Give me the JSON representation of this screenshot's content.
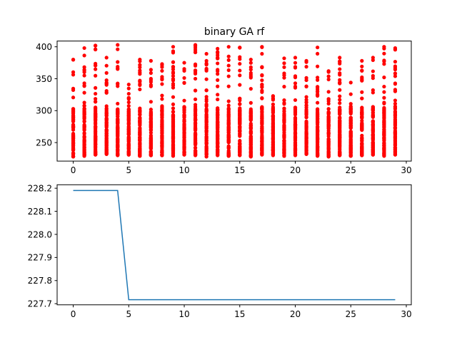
{
  "chart_data": [
    {
      "type": "scatter",
      "title": "binary GA rf",
      "xlabel": "",
      "ylabel": "",
      "xlim": [
        -1.45,
        30.45
      ],
      "ylim": [
        221,
        409
      ],
      "grid": false,
      "xticks": [
        0,
        5,
        10,
        15,
        20,
        25,
        30
      ],
      "yticks": [
        250,
        300,
        350,
        400
      ],
      "marker_color": "#ff0000",
      "points_per_generation": 100,
      "generations": [
        0,
        1,
        2,
        3,
        4,
        5,
        6,
        7,
        8,
        9,
        10,
        11,
        12,
        13,
        14,
        15,
        16,
        17,
        18,
        19,
        20,
        21,
        22,
        23,
        24,
        25,
        26,
        27,
        28,
        29
      ],
      "range_low": [
        228,
        229,
        231,
        232,
        230,
        231,
        229,
        230,
        230,
        229,
        231,
        230,
        228,
        230,
        229,
        230,
        228,
        231,
        230,
        229,
        230,
        232,
        229,
        228,
        230,
        229,
        230,
        231,
        229,
        231
      ],
      "range_high": [
        380,
        398,
        402,
        383,
        403,
        341,
        380,
        378,
        373,
        400,
        375,
        403,
        389,
        397,
        400,
        399,
        380,
        400,
        323,
        382,
        383,
        378,
        399,
        362,
        383,
        344,
        378,
        383,
        400,
        398
      ]
    },
    {
      "type": "line",
      "title": "",
      "xlabel": "",
      "ylabel": "",
      "xlim": [
        -1.45,
        30.45
      ],
      "ylim": [
        227.695,
        228.215
      ],
      "grid": false,
      "xticks": [
        0,
        5,
        10,
        15,
        20,
        25,
        30
      ],
      "yticks": [
        227.7,
        227.8,
        227.9,
        228.0,
        228.1,
        228.2
      ],
      "line_color": "#1f77b4",
      "x": [
        0,
        1,
        2,
        3,
        4,
        5,
        6,
        7,
        8,
        9,
        10,
        11,
        12,
        13,
        14,
        15,
        16,
        17,
        18,
        19,
        20,
        21,
        22,
        23,
        24,
        25,
        26,
        27,
        28,
        29
      ],
      "y": [
        228.19,
        228.19,
        228.19,
        228.19,
        228.19,
        227.717,
        227.717,
        227.717,
        227.717,
        227.717,
        227.717,
        227.717,
        227.717,
        227.717,
        227.717,
        227.717,
        227.717,
        227.717,
        227.717,
        227.717,
        227.717,
        227.717,
        227.717,
        227.717,
        227.717,
        227.717,
        227.717,
        227.717,
        227.717,
        227.717
      ]
    }
  ]
}
